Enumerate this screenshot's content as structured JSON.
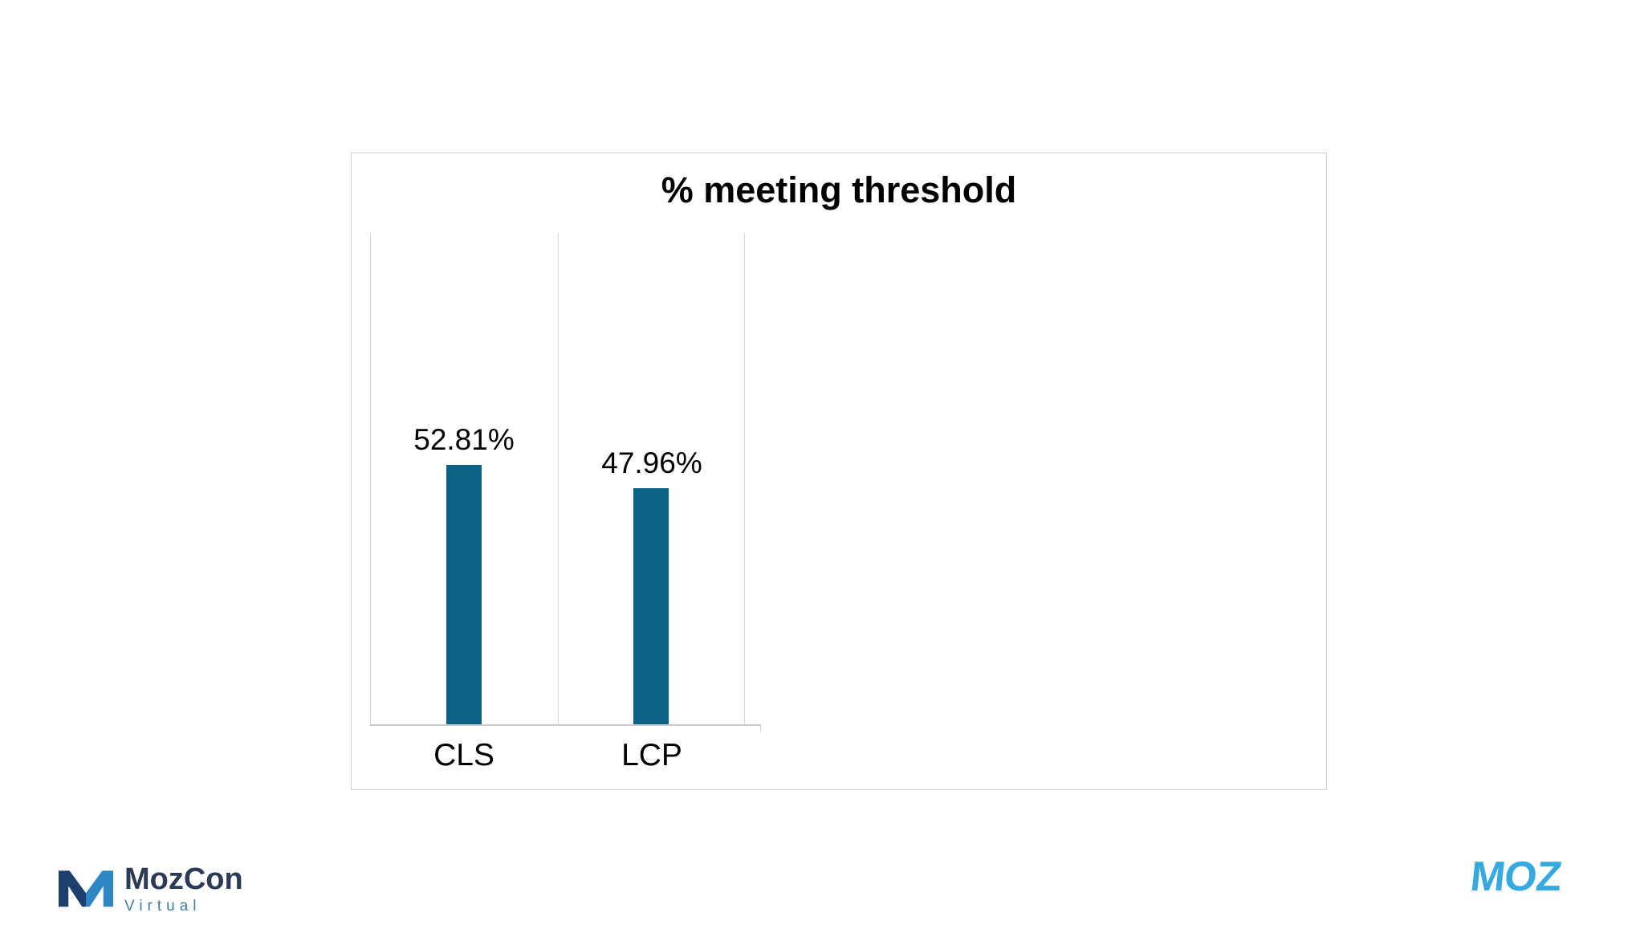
{
  "chart_data": {
    "type": "bar",
    "title": "% meeting threshold",
    "categories": [
      "CLS",
      "LCP"
    ],
    "values": [
      52.81,
      47.96
    ],
    "value_labels": [
      "52.81%",
      "47.96%"
    ],
    "ylim": [
      0,
      100
    ],
    "xlabel": "",
    "ylabel": "",
    "grid": "vertical category separators, no horizontal gridlines",
    "legend_position": "none",
    "bar_color": "#0e6284"
  },
  "footer": {
    "mozcon": {
      "name": "MozCon",
      "sub": "Virtual"
    },
    "moz": {
      "wordmark": "MOZ"
    }
  },
  "colors": {
    "bar": "#0e6284",
    "chart_border": "#cfcfcf",
    "gridline": "#d9d9d9",
    "mozcon_text": "#2b3a55",
    "mozcon_sub": "#41809f",
    "moz_blue": "#36a9e1",
    "mozcon_icon_dark": "#1d3f6e",
    "mozcon_icon_light": "#2e86c3"
  }
}
